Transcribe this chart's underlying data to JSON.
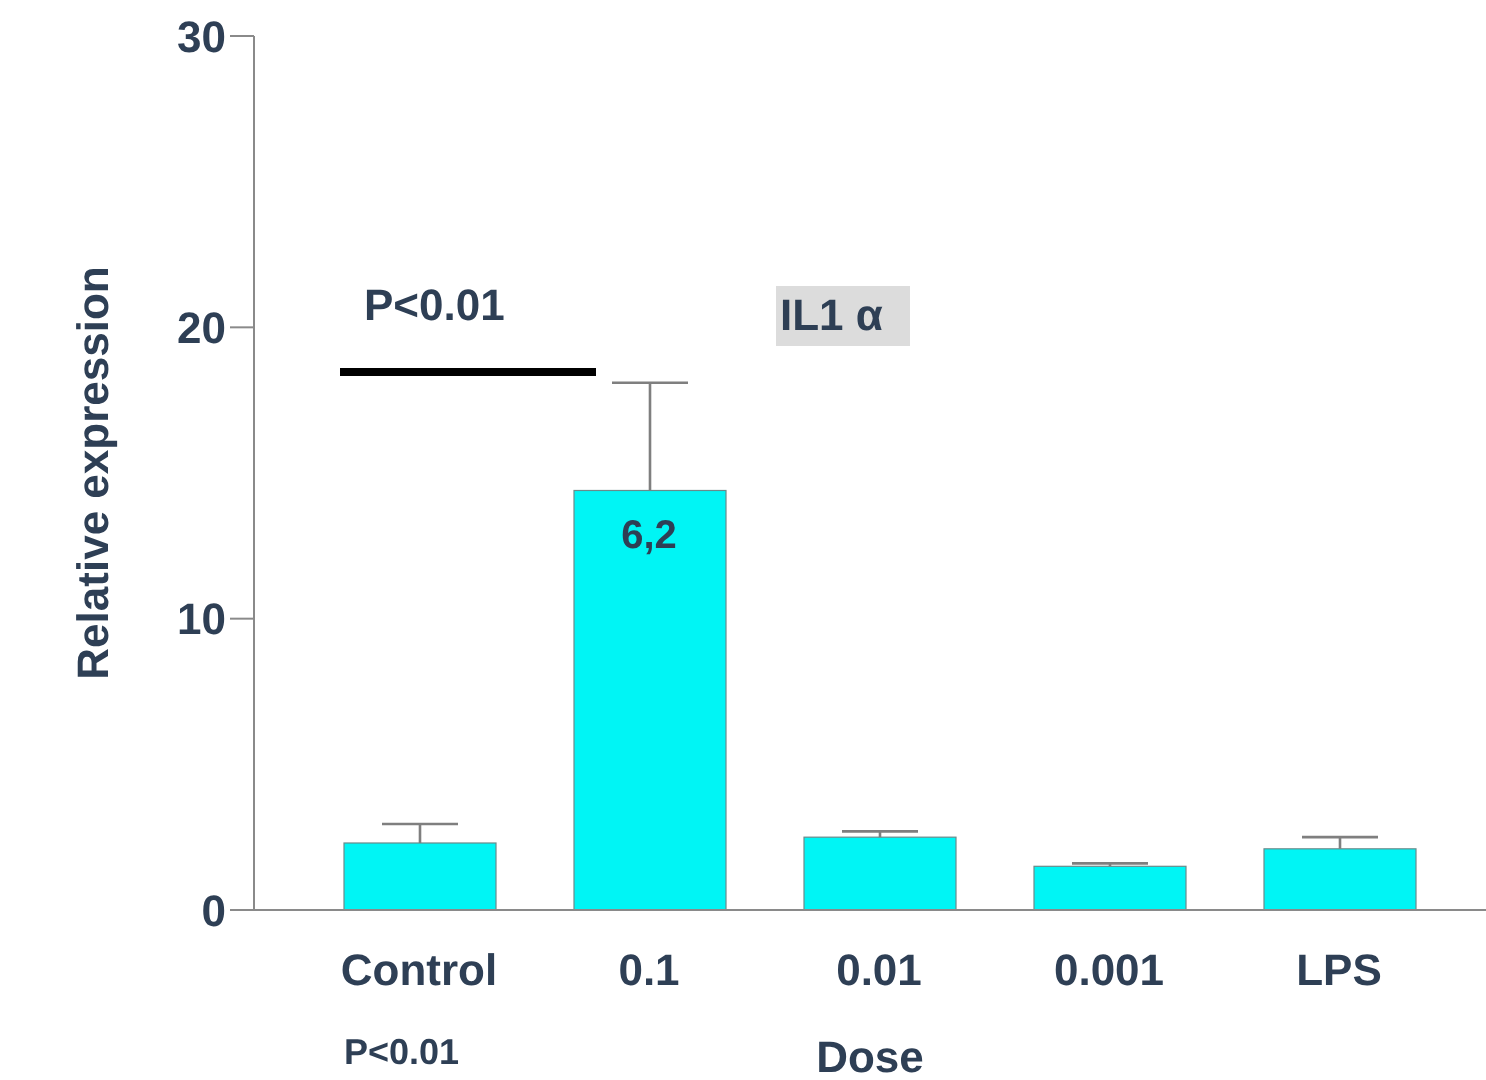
{
  "chart_data": {
    "type": "bar",
    "xlabel": "Dose",
    "ylabel": "Relative expression",
    "categories": [
      "Control",
      "0.1",
      "0.01",
      "0.001",
      "LPS"
    ],
    "values": [
      2.3,
      14.4,
      2.5,
      1.5,
      2.1
    ],
    "errors": [
      [
        2.3,
        2.95
      ],
      [
        14.4,
        18.1
      ],
      [
        2.5,
        2.7
      ],
      [
        1.5,
        1.6
      ],
      [
        2.1,
        2.5
      ]
    ],
    "color": "#00f5f5",
    "ylim": [
      0,
      30
    ],
    "yticks": [
      0,
      10,
      20,
      30
    ],
    "annotations": [
      "P<0.01",
      "IL1 α",
      "P<0.01",
      "6,2"
    ]
  }
}
